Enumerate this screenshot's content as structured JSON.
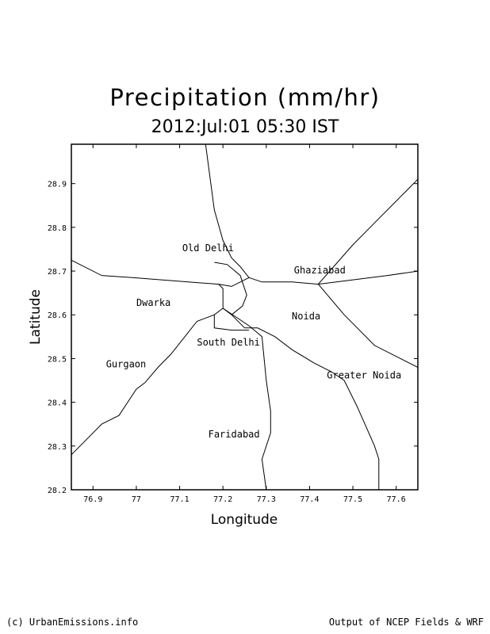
{
  "header": {
    "title": "Precipitation (mm/hr)",
    "subtitle": "2012:Jul:01 05:30 IST"
  },
  "map": {
    "xlabel": "Longitude",
    "ylabel": "Latitude",
    "xlim": [
      76.85,
      77.65
    ],
    "ylim": [
      28.2,
      28.99
    ],
    "x_ticks": [
      {
        "value": 76.9,
        "label": "76.9"
      },
      {
        "value": 77.0,
        "label": "77"
      },
      {
        "value": 77.1,
        "label": "77.1"
      },
      {
        "value": 77.2,
        "label": "77.2"
      },
      {
        "value": 77.3,
        "label": "77.3"
      },
      {
        "value": 77.4,
        "label": "77.4"
      },
      {
        "value": 77.5,
        "label": "77.5"
      },
      {
        "value": 77.6,
        "label": "77.6"
      }
    ],
    "y_ticks": [
      {
        "value": 28.2,
        "label": "28.2"
      },
      {
        "value": 28.3,
        "label": "28.3"
      },
      {
        "value": 28.4,
        "label": "28.4"
      },
      {
        "value": 28.5,
        "label": "28.5"
      },
      {
        "value": 28.6,
        "label": "28.6"
      },
      {
        "value": 28.7,
        "label": "28.7"
      },
      {
        "value": 28.8,
        "label": "28.8"
      },
      {
        "value": 28.9,
        "label": "28.9"
      }
    ],
    "cities": [
      {
        "name": "Old Delhi",
        "lon": 77.106,
        "lat": 28.745
      },
      {
        "name": "Ghaziabad",
        "lon": 77.364,
        "lat": 28.695
      },
      {
        "name": "Dwarka",
        "lon": 77.0,
        "lat": 28.62
      },
      {
        "name": "Noida",
        "lon": 77.359,
        "lat": 28.59
      },
      {
        "name": "South Delhi",
        "lon": 77.14,
        "lat": 28.53
      },
      {
        "name": "Gurgaon",
        "lon": 76.93,
        "lat": 28.48
      },
      {
        "name": "Greater Noida",
        "lon": 77.44,
        "lat": 28.455
      },
      {
        "name": "Faridabad",
        "lon": 77.166,
        "lat": 28.32
      }
    ],
    "roads": [
      [
        [
          77.16,
          28.99
        ],
        [
          77.18,
          28.84
        ],
        [
          77.2,
          28.77
        ],
        [
          77.22,
          28.73
        ],
        [
          77.24,
          28.71
        ],
        [
          77.26,
          28.685
        ],
        [
          77.22,
          28.665
        ],
        [
          77.19,
          28.67
        ],
        [
          77.12,
          28.675
        ],
        [
          76.99,
          28.685
        ],
        [
          76.92,
          28.69
        ],
        [
          76.85,
          28.725
        ]
      ],
      [
        [
          77.26,
          28.685
        ],
        [
          77.29,
          28.675
        ],
        [
          77.36,
          28.675
        ],
        [
          77.42,
          28.67
        ],
        [
          77.5,
          28.76
        ],
        [
          77.56,
          28.82
        ],
        [
          77.65,
          28.91
        ]
      ],
      [
        [
          77.42,
          28.67
        ],
        [
          77.5,
          28.68
        ],
        [
          77.58,
          28.69
        ],
        [
          77.65,
          28.7
        ]
      ],
      [
        [
          77.42,
          28.67
        ],
        [
          77.48,
          28.6
        ],
        [
          77.55,
          28.53
        ],
        [
          77.65,
          28.48
        ]
      ],
      [
        [
          77.18,
          28.72
        ],
        [
          77.21,
          28.715
        ],
        [
          77.24,
          28.69
        ],
        [
          77.255,
          28.645
        ],
        [
          77.245,
          28.62
        ],
        [
          77.22,
          28.6
        ],
        [
          77.2,
          28.615
        ],
        [
          77.2,
          28.66
        ],
        [
          77.19,
          28.67
        ]
      ],
      [
        [
          77.22,
          28.6
        ],
        [
          77.25,
          28.57
        ],
        [
          77.28,
          28.57
        ],
        [
          77.32,
          28.55
        ],
        [
          77.36,
          28.52
        ],
        [
          77.41,
          28.49
        ],
        [
          77.45,
          28.47
        ],
        [
          77.48,
          28.45
        ],
        [
          77.51,
          28.39
        ],
        [
          77.55,
          28.3
        ],
        [
          77.56,
          28.27
        ],
        [
          77.56,
          28.2
        ]
      ],
      [
        [
          77.2,
          28.615
        ],
        [
          77.18,
          28.6
        ],
        [
          77.14,
          28.585
        ],
        [
          77.12,
          28.56
        ],
        [
          77.08,
          28.51
        ],
        [
          77.05,
          28.48
        ],
        [
          77.02,
          28.445
        ],
        [
          77.0,
          28.43
        ],
        [
          76.96,
          28.37
        ],
        [
          76.92,
          28.35
        ],
        [
          76.9,
          28.33
        ],
        [
          76.85,
          28.28
        ]
      ],
      [
        [
          77.2,
          28.615
        ],
        [
          77.26,
          28.575
        ],
        [
          77.29,
          28.55
        ],
        [
          77.3,
          28.45
        ],
        [
          77.31,
          28.38
        ],
        [
          77.31,
          28.33
        ],
        [
          77.29,
          28.27
        ],
        [
          77.3,
          28.2
        ]
      ],
      [
        [
          77.18,
          28.6
        ],
        [
          77.18,
          28.57
        ],
        [
          77.22,
          28.565
        ],
        [
          77.26,
          28.565
        ]
      ]
    ]
  },
  "footer": {
    "left": "(c) UrbanEmissions.info",
    "right": "Output of NCEP Fields & WRF"
  }
}
